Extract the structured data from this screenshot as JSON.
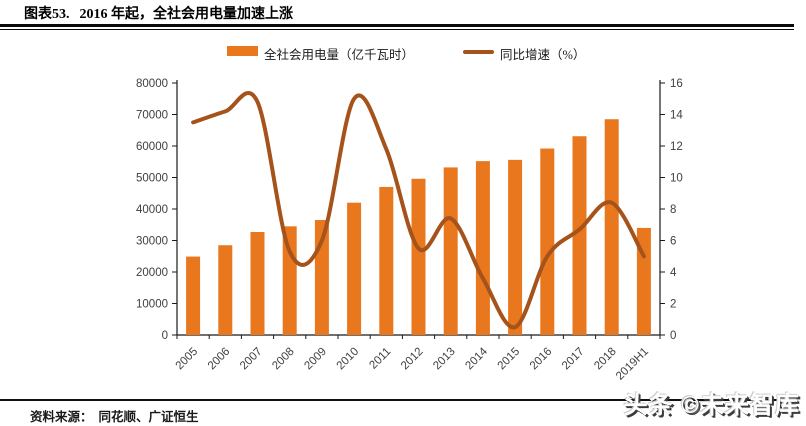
{
  "header": {
    "figure_label": "图表53.",
    "title": "2016 年起，全社会用电量加速上涨"
  },
  "legend": {
    "bar_label": "全社会用电量（亿千瓦时）",
    "line_label": "同比增速（%）"
  },
  "footer": {
    "source_label": "资料来源：",
    "source_text": "同花顺、广证恒生",
    "watermark": "头条 ©未来智库"
  },
  "colors": {
    "bar": "#E8771E",
    "line": "#A5531B",
    "axis": "#1a1a1a",
    "tick_label": "#3f3f3f"
  },
  "chart_data": {
    "type": "bar",
    "subtype": "bar+line combo, dual axis",
    "categories": [
      "2005",
      "2006",
      "2007",
      "2008",
      "2009",
      "2010",
      "2011",
      "2012",
      "2013",
      "2014",
      "2015",
      "2016",
      "2017",
      "2018",
      "2019H1"
    ],
    "series": [
      {
        "name": "全社会用电量（亿千瓦时）",
        "type": "bar",
        "axis": "left",
        "values": [
          24900,
          28500,
          32700,
          34500,
          36500,
          42000,
          47000,
          49600,
          53200,
          55200,
          55600,
          59200,
          63100,
          68500,
          34000
        ]
      },
      {
        "name": "同比增速（%）",
        "type": "line",
        "axis": "right",
        "values": [
          13.5,
          14.2,
          14.8,
          5.3,
          6.0,
          15.0,
          11.8,
          5.5,
          7.4,
          3.6,
          0.5,
          5.0,
          6.7,
          8.4,
          5.0
        ]
      }
    ],
    "left_axis": {
      "min": 0,
      "max": 80000,
      "step": 10000
    },
    "right_axis": {
      "min": 0,
      "max": 16,
      "step": 2
    },
    "grid": false,
    "legend_position": "top"
  }
}
